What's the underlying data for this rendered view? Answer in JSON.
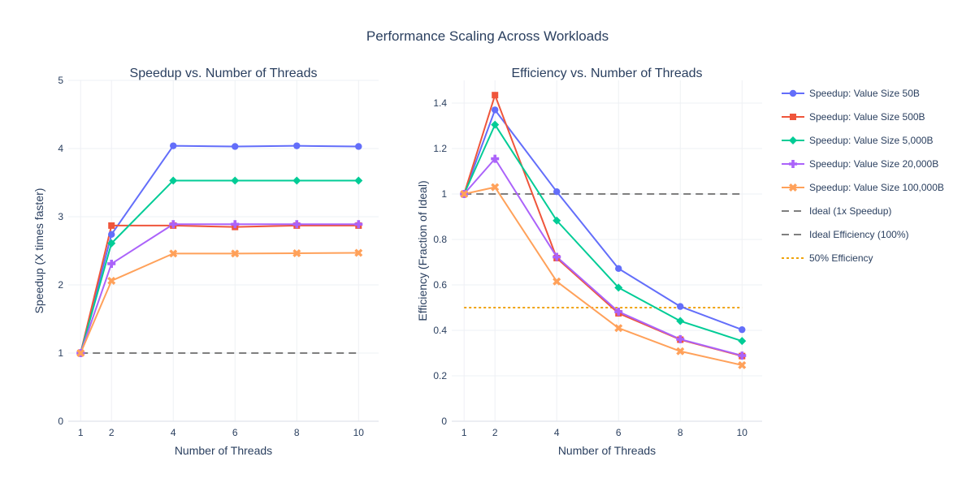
{
  "figure": {
    "title": "Performance Scaling Across Workloads",
    "title_color": "#2a3f5f",
    "text_color": "#2a3f5f",
    "grid_color": "#eef0f4"
  },
  "legend": {
    "position": "right",
    "items": [
      {
        "label": "Speedup: Value Size 50B",
        "color": "#636efa",
        "marker": "circle",
        "dash": "solid"
      },
      {
        "label": "Speedup: Value Size 500B",
        "color": "#ef553b",
        "marker": "square",
        "dash": "solid"
      },
      {
        "label": "Speedup: Value Size 5,000B",
        "color": "#00cc96",
        "marker": "diamond",
        "dash": "solid"
      },
      {
        "label": "Speedup: Value Size 20,000B",
        "color": "#ab63fa",
        "marker": "cross",
        "dash": "solid"
      },
      {
        "label": "Speedup: Value Size 100,000B",
        "color": "#ffa15a",
        "marker": "x",
        "dash": "solid"
      },
      {
        "label": "Ideal (1x Speedup)",
        "color": "#7f7f7f",
        "marker": "none",
        "dash": "dash"
      },
      {
        "label": "Ideal Efficiency (100%)",
        "color": "#7f7f7f",
        "marker": "none",
        "dash": "dash"
      },
      {
        "label": "50% Efficiency",
        "color": "#f0a30a",
        "marker": "none",
        "dash": "dot"
      }
    ]
  },
  "chart_data": [
    {
      "type": "line",
      "title": "Speedup vs. Number of Threads",
      "xlabel": "Number of Threads",
      "ylabel": "Speedup (X times faster)",
      "x": [
        1,
        2,
        4,
        6,
        8,
        10
      ],
      "xticks": [
        "1",
        "2",
        "4",
        "6",
        "8",
        "10"
      ],
      "xlim": [
        0.6,
        10.65
      ],
      "ylim": [
        0,
        5
      ],
      "yticks": [
        0,
        1,
        2,
        3,
        4,
        5
      ],
      "ytick_labels": [
        "0",
        "1",
        "2",
        "3",
        "4",
        "5"
      ],
      "grid": true,
      "series": [
        {
          "name": "Speedup: Value Size 50B",
          "color": "#636efa",
          "marker": "circle",
          "values": [
            1.0,
            2.74,
            4.04,
            4.03,
            4.04,
            4.03
          ]
        },
        {
          "name": "Speedup: Value Size 500B",
          "color": "#ef553b",
          "marker": "square",
          "values": [
            1.0,
            2.87,
            2.87,
            2.85,
            2.87,
            2.87
          ]
        },
        {
          "name": "Speedup: Value Size 5,000B",
          "color": "#00cc96",
          "marker": "diamond",
          "values": [
            1.0,
            2.61,
            3.53,
            3.53,
            3.53,
            3.53
          ]
        },
        {
          "name": "Speedup: Value Size 20,000B",
          "color": "#ab63fa",
          "marker": "cross",
          "values": [
            1.0,
            2.31,
            2.89,
            2.89,
            2.89,
            2.89
          ]
        },
        {
          "name": "Speedup: Value Size 100,000B",
          "color": "#ffa15a",
          "marker": "x",
          "values": [
            1.0,
            2.06,
            2.46,
            2.46,
            2.465,
            2.47
          ]
        }
      ],
      "reference_lines": [
        {
          "name": "Ideal (1x Speedup)",
          "y": 1,
          "x_range": [
            1,
            10
          ],
          "color": "#7f7f7f",
          "dash": "dash"
        }
      ]
    },
    {
      "type": "line",
      "title": "Efficiency vs. Number of Threads",
      "xlabel": "Number of Threads",
      "ylabel": "Efficiency (Fraction of Ideal)",
      "x": [
        1,
        2,
        4,
        6,
        8,
        10
      ],
      "xticks": [
        "1",
        "2",
        "4",
        "6",
        "8",
        "10"
      ],
      "xlim": [
        0.6,
        10.65
      ],
      "ylim": [
        0,
        1.5
      ],
      "yticks": [
        0,
        0.2,
        0.4,
        0.6,
        0.8,
        1,
        1.2,
        1.4
      ],
      "ytick_labels": [
        "0",
        "0.2",
        "0.4",
        "0.6",
        "0.8",
        "1",
        "1.2",
        "1.4"
      ],
      "grid": true,
      "series": [
        {
          "name": "Speedup: Value Size 50B",
          "color": "#636efa",
          "marker": "circle",
          "values": [
            1.0,
            1.37,
            1.01,
            0.672,
            0.505,
            0.403
          ]
        },
        {
          "name": "Speedup: Value Size 500B",
          "color": "#ef553b",
          "marker": "square",
          "values": [
            1.0,
            1.435,
            0.718,
            0.475,
            0.359,
            0.287
          ]
        },
        {
          "name": "Speedup: Value Size 5,000B",
          "color": "#00cc96",
          "marker": "diamond",
          "values": [
            1.0,
            1.305,
            0.883,
            0.588,
            0.441,
            0.353
          ]
        },
        {
          "name": "Speedup: Value Size 20,000B",
          "color": "#ab63fa",
          "marker": "cross",
          "values": [
            1.0,
            1.155,
            0.723,
            0.482,
            0.361,
            0.289
          ]
        },
        {
          "name": "Speedup: Value Size 100,000B",
          "color": "#ffa15a",
          "marker": "x",
          "values": [
            1.0,
            1.03,
            0.615,
            0.41,
            0.308,
            0.247
          ]
        }
      ],
      "reference_lines": [
        {
          "name": "Ideal Efficiency (100%)",
          "y": 1,
          "x_range": [
            1,
            10
          ],
          "color": "#7f7f7f",
          "dash": "dash"
        },
        {
          "name": "50% Efficiency",
          "y": 0.5,
          "x_range": [
            1,
            10
          ],
          "color": "#f0a30a",
          "dash": "dot"
        }
      ]
    }
  ]
}
